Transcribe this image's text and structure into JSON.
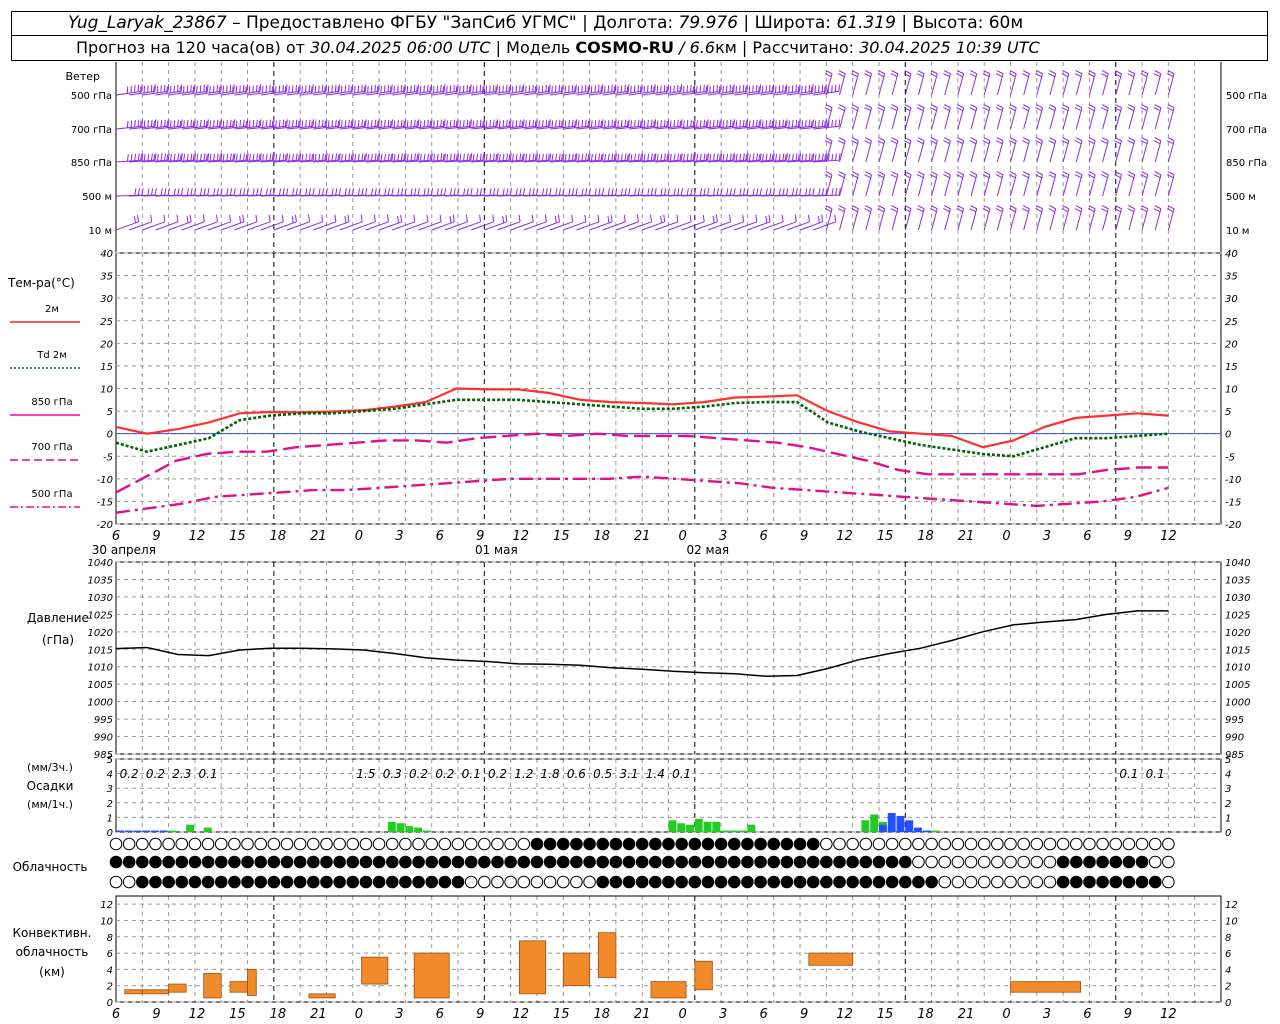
{
  "header": {
    "station": "Yug_Laryak_23867",
    "provider": " – Предоставлено ФГБУ \"ЗапСиб УГМС\" | Долгота: ",
    "lon": "79.976",
    "lat_label": " | Широта: ",
    "lat": "61.319",
    "alt_label": " | Высота: 60м",
    "fc_prefix": "Прогноз на 120 часа(ов) от ",
    "fc_time": "30.04.2025 06:00 UTC",
    "model_label": "  | Модель ",
    "model": "COSMO-RU",
    "res": " / 6.6",
    "res_unit": "км | Рассчитано: ",
    "calc_time": "30.04.2025 10:39 UTC"
  },
  "wind": {
    "title": "Ветер",
    "levels": [
      "500 гПа",
      "700 гПа",
      "850 гПа",
      "500 м",
      "10  м"
    ],
    "color": "#8a2be2"
  },
  "temperature": {
    "title": "Тем-ра(°C)",
    "legend": [
      {
        "label": "2м",
        "color": "#ff2020",
        "style": "solid"
      },
      {
        "label": "Td  2м",
        "color": "#006400",
        "style": "dotted"
      },
      {
        "label": "850 гПа",
        "color": "#ff00a0",
        "style": "solid"
      },
      {
        "label": "700 гПа",
        "color": "#e0108a",
        "style": "dash"
      },
      {
        "label": "500 гПа",
        "color": "#e0108a",
        "style": "dashdot"
      }
    ],
    "yticks": [
      40,
      35,
      30,
      25,
      20,
      15,
      10,
      5,
      0,
      -5,
      -10,
      -15,
      -20
    ]
  },
  "pressure": {
    "title": "Давление",
    "unit": "(гПа)",
    "yticks": [
      1040,
      1035,
      1030,
      1025,
      1020,
      1015,
      1010,
      1005,
      1000,
      995,
      990,
      985
    ]
  },
  "precip": {
    "title1": "(мм/3ч.)",
    "title2": "Осадки",
    "title3": "(мм/1ч.)",
    "yticks": [
      5,
      4,
      3,
      2,
      1,
      0
    ],
    "labels": [
      "0.2",
      "0.2",
      "2.3",
      "0.1",
      "1.5",
      "0.3",
      "0.2",
      "0.2",
      "0.1",
      "0.2",
      "1.2",
      "1.8",
      "0.6",
      "0.5",
      "3.1",
      "1.4",
      "0.1",
      "0.1",
      "0.1"
    ]
  },
  "clouds": {
    "title": "Облачность"
  },
  "convective": {
    "title1": "Конвективн.",
    "title2": "облачность",
    "title3": "(км)",
    "yticks": [
      12,
      10,
      8,
      6,
      4,
      2,
      0
    ]
  },
  "xaxis": {
    "hours": [
      "6",
      "9",
      "12",
      "15",
      "18",
      "21",
      "0",
      "3",
      "6",
      "9",
      "12",
      "15",
      "18",
      "21",
      "0",
      "3",
      "6",
      "9",
      "12",
      "15",
      "18",
      "21",
      "0",
      "3",
      "6",
      "9",
      "12"
    ],
    "dates": [
      "30 апреля",
      "01 мая",
      "02 мая"
    ]
  },
  "chart_data": [
    {
      "type": "line",
      "title": "Тем-ра(°C)",
      "x_hours_from_start": [
        0,
        3,
        6,
        9,
        12,
        15,
        18,
        21,
        24,
        27,
        30,
        33,
        36,
        39,
        42,
        45,
        48,
        51,
        54,
        57,
        60,
        63,
        66,
        69,
        72,
        75,
        78,
        81,
        84,
        87,
        90,
        93,
        96,
        99,
        102,
        105,
        108,
        111,
        114,
        117,
        120
      ],
      "ylim": [
        -20,
        40
      ],
      "series": [
        {
          "name": "2м",
          "values": [
            1.5,
            0,
            1,
            2.5,
            4.5,
            4.8,
            4.7,
            4.9,
            5.2,
            6,
            7,
            10,
            9.8,
            9.8,
            9,
            7.5,
            7,
            6.8,
            6.5,
            7,
            8,
            8.2,
            8.5,
            5,
            2.5,
            0.5,
            0,
            -0.5,
            -3,
            -1.5,
            1.5,
            3.5,
            4,
            4.5,
            4
          ]
        },
        {
          "name": "Td  2м",
          "values": [
            -2,
            -4,
            -2.5,
            -1,
            3,
            4,
            4.5,
            4.5,
            5,
            5.5,
            6.5,
            7.5,
            7.5,
            7.5,
            7,
            6.5,
            6,
            5.5,
            5.5,
            6,
            6.8,
            7,
            7,
            2.5,
            0.5,
            -1,
            -2.5,
            -3.5,
            -4.5,
            -5,
            -3,
            -1,
            -1,
            -0.5,
            0
          ]
        },
        {
          "name": "700 гПа",
          "values": [
            -13,
            -9.5,
            -6,
            -4.5,
            -4,
            -4,
            -3,
            -2.5,
            -2,
            -1.5,
            -1.5,
            -2,
            -1,
            -0.5,
            0,
            -0.5,
            0,
            -0.5,
            -0.5,
            -0.5,
            -1,
            -1.5,
            -2,
            -3,
            -4.5,
            -6,
            -8,
            -9,
            -9,
            -9,
            -9,
            -9,
            -9,
            -8,
            -7.5,
            -7.5
          ]
        },
        {
          "name": "500 гПа",
          "values": [
            -17.5,
            -16.5,
            -15.5,
            -14,
            -13.5,
            -13,
            -12.5,
            -12.5,
            -12,
            -11.5,
            -11,
            -10.5,
            -10,
            -10,
            -10,
            -10,
            -9.5,
            -10,
            -10.5,
            -11,
            -12,
            -12.5,
            -13,
            -13.5,
            -14,
            -14.5,
            -15,
            -15.5,
            -16,
            -15.5,
            -15,
            -14,
            -12
          ]
        }
      ]
    },
    {
      "type": "line",
      "title": "Давление",
      "x_hours_from_start": [
        0,
        3,
        6,
        9,
        12,
        15,
        18,
        21,
        24,
        27,
        30,
        33,
        36,
        39,
        42,
        45,
        48,
        51,
        54,
        57,
        60,
        63,
        66,
        69,
        72,
        75,
        78,
        81,
        84,
        87,
        90,
        93,
        96,
        99,
        102,
        105,
        108,
        111,
        114,
        117,
        120
      ],
      "ylim": [
        985,
        1040
      ],
      "values": [
        1015.2,
        1015.5,
        1013.5,
        1013.2,
        1014.8,
        1015.3,
        1015.3,
        1015.1,
        1014.8,
        1013.8,
        1012.6,
        1011.9,
        1011.5,
        1010.8,
        1010.7,
        1010.4,
        1009.7,
        1009.3,
        1008.7,
        1008.3,
        1008,
        1007.3,
        1007.5,
        1009.5,
        1012,
        1013.8,
        1015.3,
        1017.5,
        1020,
        1022,
        1022.8,
        1023.5,
        1025,
        1026,
        1026
      ]
    },
    {
      "type": "bar",
      "title": "Осадки",
      "ylim": [
        0,
        5
      ],
      "series": [
        {
          "name": "green",
          "x_hours_from_start": [
            6,
            8,
            10,
            31,
            32,
            33,
            34,
            35,
            63,
            64,
            65,
            66,
            67,
            68,
            69,
            70,
            71,
            72,
            85,
            86,
            87,
            88,
            89,
            92,
            93
          ],
          "values": [
            0.1,
            0.5,
            0.3,
            0.7,
            0.6,
            0.4,
            0.3,
            0.1,
            0.8,
            0.6,
            0.5,
            0.9,
            0.7,
            0.7,
            0.1,
            0.1,
            0.1,
            0.5,
            0.8,
            1.2,
            0.7,
            0.1,
            0.1,
            0.1,
            0.1
          ]
        },
        {
          "name": "blue",
          "x_hours_from_start": [
            0,
            1,
            2,
            3,
            4,
            5,
            87,
            88,
            89,
            90,
            91,
            92
          ],
          "values": [
            0.1,
            0.1,
            0.1,
            0.1,
            0.1,
            0.1,
            0.5,
            1.3,
            1.1,
            0.8,
            0.3,
            0.1
          ]
        }
      ]
    },
    {
      "type": "bar",
      "title": "Конвективн. облачность (км)",
      "ylim": [
        0,
        12
      ],
      "blocks": [
        {
          "x": [
            1,
            3
          ],
          "bottom": 1,
          "top": 1.5
        },
        {
          "x": [
            3,
            6
          ],
          "bottom": 1,
          "top": 1.5
        },
        {
          "x": [
            6,
            8
          ],
          "bottom": 1.2,
          "top": 2.2
        },
        {
          "x": [
            10,
            12
          ],
          "bottom": 0.5,
          "top": 3.5
        },
        {
          "x": [
            13,
            15
          ],
          "bottom": 1.2,
          "top": 2.5
        },
        {
          "x": [
            15,
            16
          ],
          "bottom": 0.8,
          "top": 4
        },
        {
          "x": [
            22,
            25
          ],
          "bottom": 0.5,
          "top": 1
        },
        {
          "x": [
            28,
            31
          ],
          "bottom": 2.2,
          "top": 5.5
        },
        {
          "x": [
            34,
            38
          ],
          "bottom": 0.5,
          "top": 6
        },
        {
          "x": [
            46,
            49
          ],
          "bottom": 1,
          "top": 7.5
        },
        {
          "x": [
            51,
            54
          ],
          "bottom": 2,
          "top": 6
        },
        {
          "x": [
            55,
            57
          ],
          "bottom": 3,
          "top": 8.5
        },
        {
          "x": [
            61,
            65
          ],
          "bottom": 0.5,
          "top": 2.5
        },
        {
          "x": [
            66,
            68
          ],
          "bottom": 1.5,
          "top": 5
        },
        {
          "x": [
            79,
            84
          ],
          "bottom": 4.5,
          "top": 6
        },
        {
          "x": [
            102,
            110
          ],
          "bottom": 1.2,
          "top": 2.5
        }
      ]
    }
  ]
}
